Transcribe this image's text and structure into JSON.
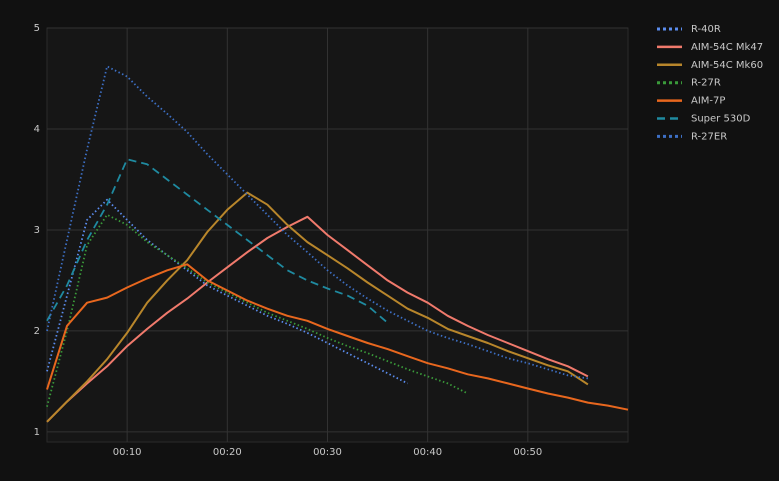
{
  "chart_data": {
    "type": "line",
    "xlim": [
      2,
      60
    ],
    "ylim": [
      0.9,
      5
    ],
    "xticks": [
      {
        "value": 10,
        "label": "00:10"
      },
      {
        "value": 20,
        "label": "00:20"
      },
      {
        "value": 30,
        "label": "00:30"
      },
      {
        "value": 40,
        "label": "00:40"
      },
      {
        "value": 50,
        "label": "00:50"
      }
    ],
    "yticks": [
      1,
      2,
      3,
      4,
      5
    ],
    "grid": true,
    "legend": "right",
    "series": [
      {
        "name": "R-40R",
        "color": "#5b8def",
        "style": "dotted",
        "x": [
          2,
          6,
          8,
          10,
          12,
          14,
          16,
          18,
          20,
          22,
          24,
          26,
          28,
          30,
          32,
          34,
          36,
          38
        ],
        "values": [
          1.6,
          3.1,
          3.3,
          3.1,
          2.9,
          2.75,
          2.6,
          2.45,
          2.35,
          2.25,
          2.15,
          2.07,
          1.98,
          1.88,
          1.78,
          1.68,
          1.58,
          1.48
        ]
      },
      {
        "name": "AIM-54C Mk47",
        "color": "#f07a6c",
        "style": "solid",
        "x": [
          2,
          4,
          6,
          8,
          10,
          12,
          14,
          16,
          18,
          20,
          22,
          24,
          26,
          28,
          30,
          32,
          34,
          36,
          38,
          40,
          42,
          44,
          46,
          48,
          50,
          52,
          54,
          56
        ],
        "values": [
          1.1,
          1.3,
          1.48,
          1.65,
          1.85,
          2.02,
          2.18,
          2.32,
          2.48,
          2.63,
          2.78,
          2.92,
          3.03,
          3.13,
          2.95,
          2.8,
          2.65,
          2.5,
          2.38,
          2.28,
          2.15,
          2.05,
          1.96,
          1.88,
          1.8,
          1.72,
          1.65,
          1.55
        ]
      },
      {
        "name": "AIM-54C Mk60",
        "color": "#b8862b",
        "style": "solid",
        "x": [
          2,
          4,
          6,
          8,
          10,
          12,
          14,
          16,
          18,
          20,
          22,
          24,
          26,
          28,
          30,
          32,
          34,
          36,
          38,
          40,
          42,
          44,
          46,
          48,
          50,
          52,
          54,
          56
        ],
        "values": [
          1.1,
          1.3,
          1.5,
          1.72,
          1.98,
          2.28,
          2.5,
          2.7,
          2.98,
          3.2,
          3.37,
          3.25,
          3.05,
          2.88,
          2.75,
          2.62,
          2.48,
          2.35,
          2.22,
          2.13,
          2.02,
          1.95,
          1.88,
          1.8,
          1.73,
          1.66,
          1.6,
          1.47
        ]
      },
      {
        "name": "R-27R",
        "color": "#3a9a3a",
        "style": "dotted",
        "x": [
          2,
          4,
          6,
          8,
          10,
          12,
          14,
          16,
          18,
          20,
          22,
          24,
          26,
          28,
          30,
          32,
          34,
          36,
          38,
          40,
          42,
          44
        ],
        "values": [
          1.25,
          2.0,
          2.85,
          3.15,
          3.05,
          2.88,
          2.75,
          2.62,
          2.48,
          2.38,
          2.28,
          2.18,
          2.1,
          2.02,
          1.93,
          1.85,
          1.78,
          1.7,
          1.62,
          1.55,
          1.48,
          1.38
        ]
      },
      {
        "name": "AIM-7P",
        "color": "#e8671e",
        "style": "solid",
        "x": [
          2,
          4,
          6,
          8,
          10,
          12,
          14,
          16,
          18,
          20,
          22,
          24,
          26,
          28,
          30,
          32,
          34,
          36,
          38,
          40,
          42,
          44,
          46,
          48,
          50,
          52,
          54,
          56,
          58,
          60
        ],
        "values": [
          1.42,
          2.05,
          2.28,
          2.33,
          2.43,
          2.52,
          2.6,
          2.66,
          2.5,
          2.4,
          2.3,
          2.22,
          2.15,
          2.1,
          2.02,
          1.95,
          1.88,
          1.82,
          1.75,
          1.68,
          1.63,
          1.57,
          1.53,
          1.48,
          1.43,
          1.38,
          1.34,
          1.29,
          1.26,
          1.22
        ]
      },
      {
        "name": "Super 530D",
        "color": "#1f8aa0",
        "style": "dashed",
        "x": [
          2,
          4,
          6,
          8,
          10,
          12,
          14,
          16,
          18,
          20,
          22,
          24,
          26,
          28,
          30,
          32,
          34,
          36
        ],
        "values": [
          2.1,
          2.45,
          2.9,
          3.25,
          3.7,
          3.65,
          3.5,
          3.35,
          3.2,
          3.05,
          2.9,
          2.75,
          2.6,
          2.5,
          2.42,
          2.35,
          2.25,
          2.08
        ]
      },
      {
        "name": "R-27ER",
        "color": "#3d6fc4",
        "style": "dotted",
        "x": [
          2,
          4,
          6,
          8,
          10,
          12,
          14,
          16,
          18,
          20,
          22,
          24,
          26,
          28,
          30,
          32,
          34,
          36,
          38,
          40,
          42,
          44,
          46,
          48,
          50,
          52,
          54,
          56
        ],
        "values": [
          2.0,
          2.9,
          3.8,
          4.62,
          4.52,
          4.32,
          4.15,
          3.97,
          3.75,
          3.55,
          3.35,
          3.15,
          2.95,
          2.78,
          2.6,
          2.45,
          2.32,
          2.2,
          2.1,
          2.0,
          1.93,
          1.87,
          1.8,
          1.73,
          1.68,
          1.62,
          1.56,
          1.53
        ]
      }
    ]
  }
}
